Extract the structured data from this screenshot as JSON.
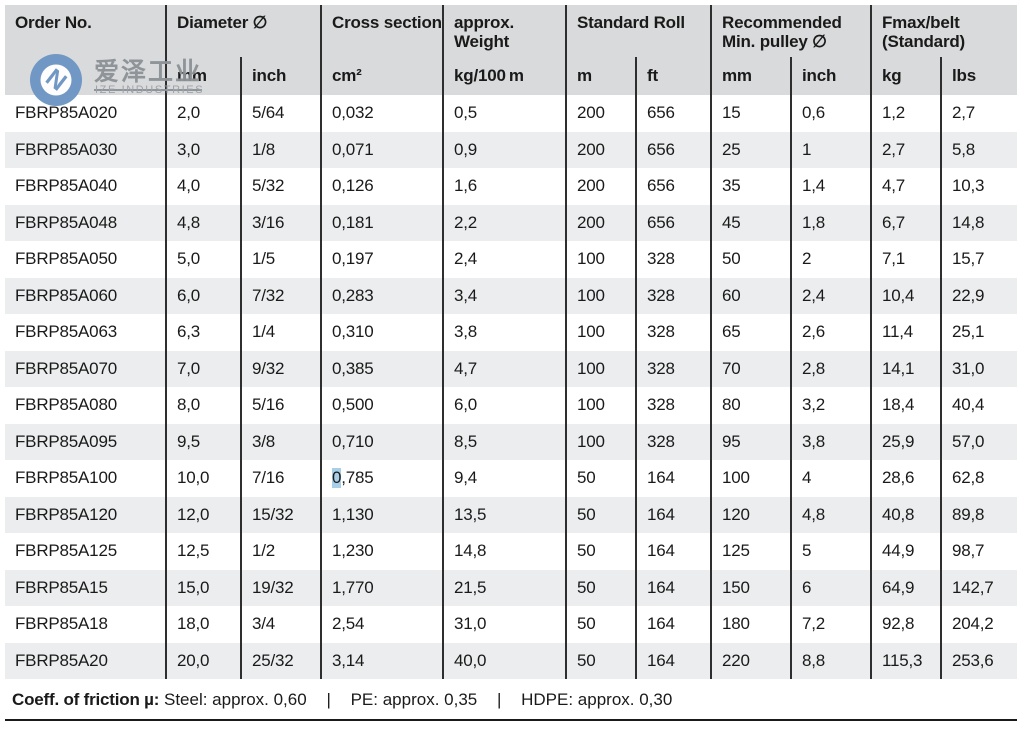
{
  "header": {
    "groups": [
      "Order No.",
      "Diameter ∅",
      "Cross section",
      "approx. Weight",
      "Standard Roll",
      "Recommended Min. pulley ∅",
      "Fmax/belt (Standard)"
    ],
    "units": [
      "",
      "mm",
      "inch",
      "cm²",
      "kg/100 m",
      "m",
      "ft",
      "mm",
      "inch",
      "kg",
      "lbs"
    ]
  },
  "rows": [
    [
      "FBRP85A020",
      "2,0",
      "5/64",
      "0,032",
      "0,5",
      "200",
      "656",
      "15",
      "0,6",
      "1,2",
      "2,7"
    ],
    [
      "FBRP85A030",
      "3,0",
      "1/8",
      "0,071",
      "0,9",
      "200",
      "656",
      "25",
      "1",
      "2,7",
      "5,8"
    ],
    [
      "FBRP85A040",
      "4,0",
      "5/32",
      "0,126",
      "1,6",
      "200",
      "656",
      "35",
      "1,4",
      "4,7",
      "10,3"
    ],
    [
      "FBRP85A048",
      "4,8",
      "3/16",
      "0,181",
      "2,2",
      "200",
      "656",
      "45",
      "1,8",
      "6,7",
      "14,8"
    ],
    [
      "FBRP85A050",
      "5,0",
      "1/5",
      "0,197",
      "2,4",
      "100",
      "328",
      "50",
      "2",
      "7,1",
      "15,7"
    ],
    [
      "FBRP85A060",
      "6,0",
      "7/32",
      "0,283",
      "3,4",
      "100",
      "328",
      "60",
      "2,4",
      "10,4",
      "22,9"
    ],
    [
      "FBRP85A063",
      "6,3",
      "1/4",
      "0,310",
      "3,8",
      "100",
      "328",
      "65",
      "2,6",
      "11,4",
      "25,1"
    ],
    [
      "FBRP85A070",
      "7,0",
      "9/32",
      "0,385",
      "4,7",
      "100",
      "328",
      "70",
      "2,8",
      "14,1",
      "31,0"
    ],
    [
      "FBRP85A080",
      "8,0",
      "5/16",
      "0,500",
      "6,0",
      "100",
      "328",
      "80",
      "3,2",
      "18,4",
      "40,4"
    ],
    [
      "FBRP85A095",
      "9,5",
      "3/8",
      "0,710",
      "8,5",
      "100",
      "328",
      "95",
      "3,8",
      "25,9",
      "57,0"
    ],
    [
      "FBRP85A100",
      "10,0",
      "7/16",
      "0,785",
      "9,4",
      "50",
      "164",
      "100",
      "4",
      "28,6",
      "62,8"
    ],
    [
      "FBRP85A120",
      "12,0",
      "15/32",
      "1,130",
      "13,5",
      "50",
      "164",
      "120",
      "4,8",
      "40,8",
      "89,8"
    ],
    [
      "FBRP85A125",
      "12,5",
      "1/2",
      "1,230",
      "14,8",
      "50",
      "164",
      "125",
      "5",
      "44,9",
      "98,7"
    ],
    [
      "FBRP85A15",
      "15,0",
      "19/32",
      "1,770",
      "21,5",
      "50",
      "164",
      "150",
      "6",
      "64,9",
      "142,7"
    ],
    [
      "FBRP85A18",
      "18,0",
      "3/4",
      "2,54",
      "31,0",
      "50",
      "164",
      "180",
      "7,2",
      "92,8",
      "204,2"
    ],
    [
      "FBRP85A20",
      "20,0",
      "25/32",
      "3,14",
      "40,0",
      "50",
      "164",
      "220",
      "8,8",
      "115,3",
      "253,6"
    ]
  ],
  "highlight_cell": {
    "row": 10,
    "col": 3,
    "chars": 1
  },
  "footer": {
    "label": "Coeff. of friction µ:",
    "items": [
      "Steel: approx. 0,60",
      "PE: approx. 0,35",
      "HDPE: approx. 0,30"
    ],
    "separator": "|"
  },
  "watermark": {
    "text_cn": "爱泽工业",
    "text_en": "IZE INDUSTRIES"
  },
  "colors": {
    "header_bg": "#d9dadb",
    "stripe_bg": "#ebedee",
    "grid_line": "#2e2e2e",
    "selection_highlight": "#a9cee8",
    "logo_blue": "#6d95c4",
    "watermark_gray": "#8d9297"
  }
}
